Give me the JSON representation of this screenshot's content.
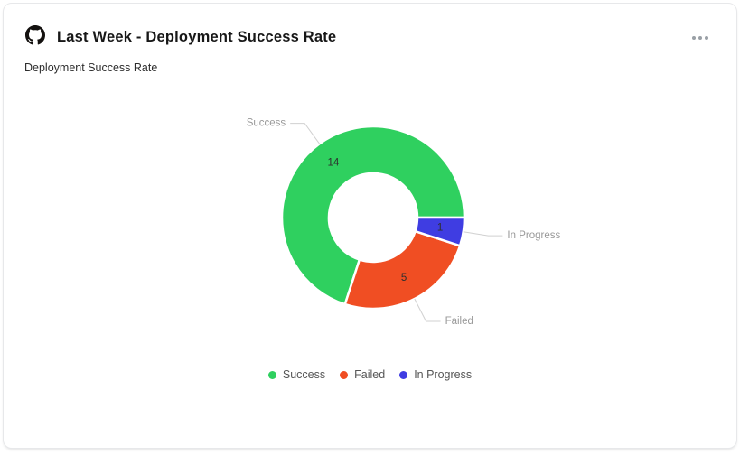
{
  "card": {
    "header": {
      "icon": "github",
      "title": "Last Week - Deployment Success Rate",
      "menu": "ellipsis"
    },
    "chart_title": "Deployment Success Rate"
  },
  "chart_data": {
    "type": "pie",
    "subtype": "donut",
    "title": "Deployment Success Rate",
    "segments": [
      {
        "label": "Success",
        "value": 14,
        "color": "#2fd05f"
      },
      {
        "label": "Failed",
        "value": 5,
        "color": "#f04e23"
      },
      {
        "label": "In Progress",
        "value": 1,
        "color": "#3f3de2"
      }
    ],
    "total": 20,
    "start_angle_deg": 0,
    "direction": "counterclockwise",
    "value_labels": "inside",
    "category_labels": "outside-with-leader-lines",
    "legend": {
      "position": "bottom",
      "items": [
        "Success",
        "Failed",
        "In Progress"
      ]
    }
  }
}
